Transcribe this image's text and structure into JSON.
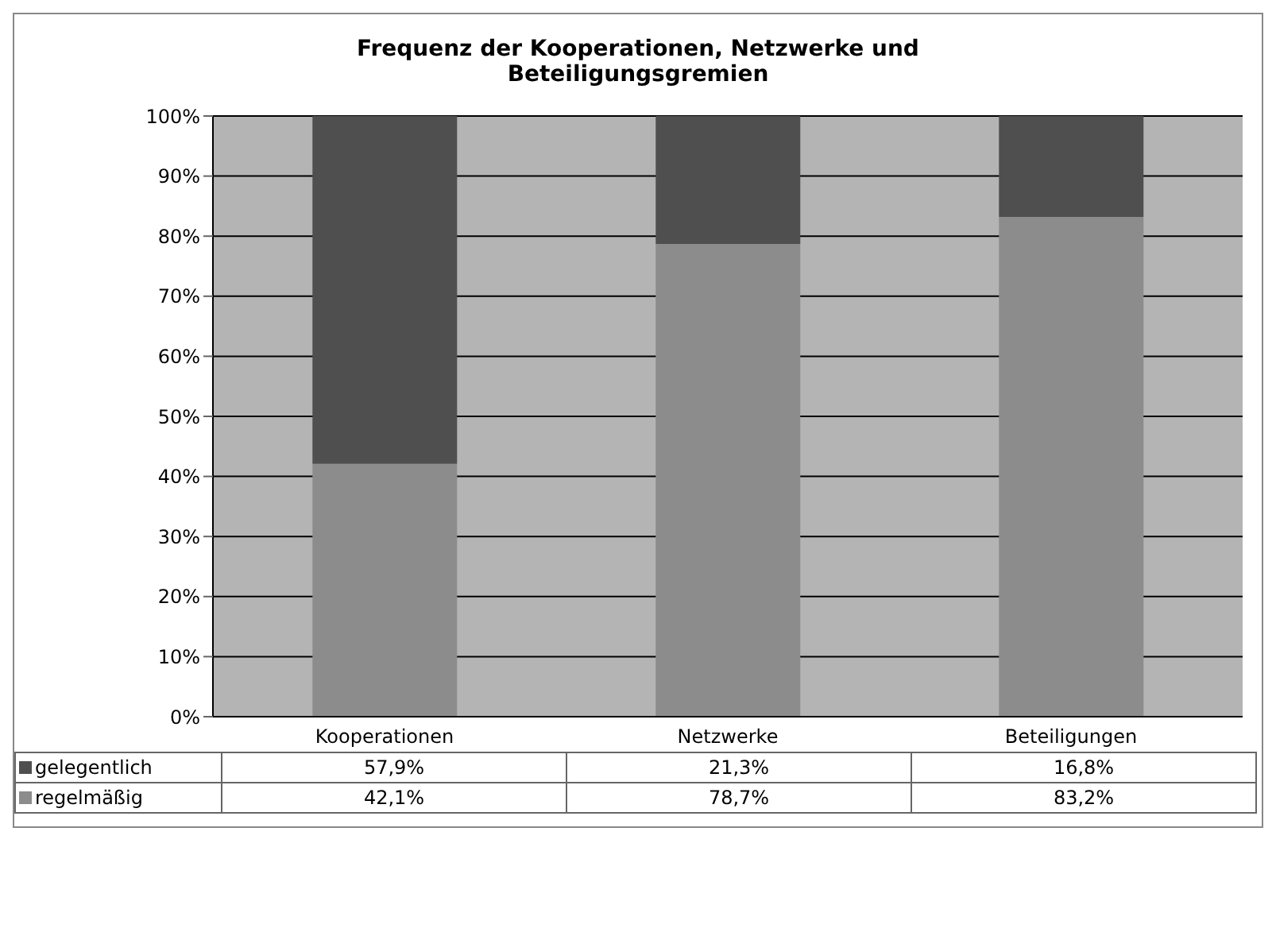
{
  "chart_data": {
    "type": "bar",
    "title": "Frequenz der Kooperationen, Netzwerke und Beteiligungsgremien",
    "categories": [
      "Kooperationen",
      "Netzwerke",
      "Beteiligungen"
    ],
    "stacked": true,
    "series": [
      {
        "name": "regelmäßig",
        "color": "#8c8c8c",
        "values": [
          42.1,
          78.7,
          83.2
        ],
        "value_labels": [
          "42,1%",
          "78,7%",
          "83,2%"
        ]
      },
      {
        "name": "gelegentlich",
        "color": "#4f4f4f",
        "values": [
          57.9,
          21.3,
          16.8
        ],
        "value_labels": [
          "57,9%",
          "21,3%",
          "16,8%"
        ]
      }
    ],
    "ylim": [
      0,
      100
    ],
    "yticks": [
      {
        "value": 0,
        "label": "0%"
      },
      {
        "value": 10,
        "label": "10%"
      },
      {
        "value": 20,
        "label": "20%"
      },
      {
        "value": 30,
        "label": "30%"
      },
      {
        "value": 40,
        "label": "40%"
      },
      {
        "value": 50,
        "label": "50%"
      },
      {
        "value": 60,
        "label": "60%"
      },
      {
        "value": 70,
        "label": "70%"
      },
      {
        "value": 80,
        "label": "80%"
      },
      {
        "value": 90,
        "label": "90%"
      },
      {
        "value": 100,
        "label": "100%"
      }
    ],
    "grid": "y",
    "legend": "bottom left"
  }
}
